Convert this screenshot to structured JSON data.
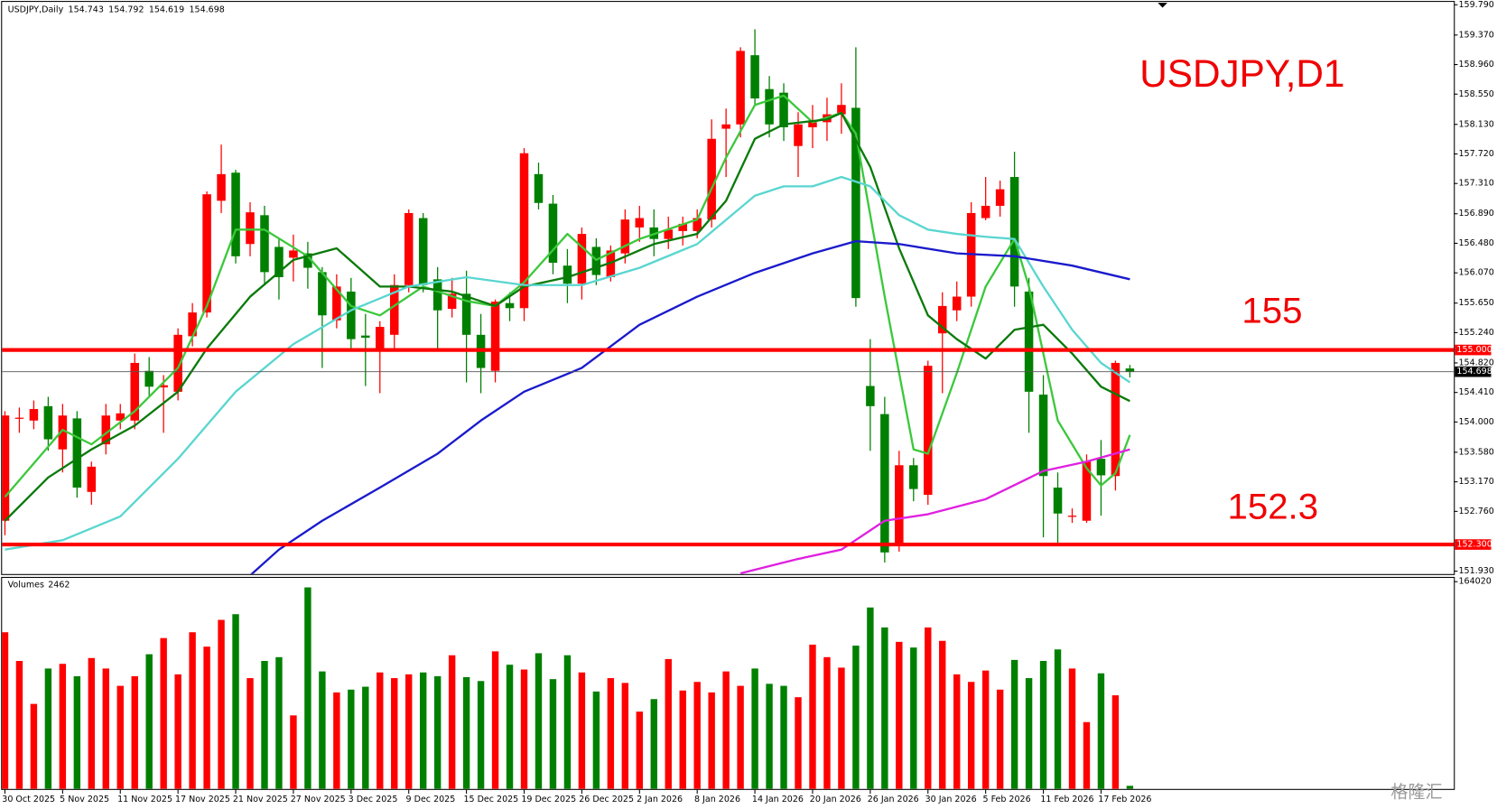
{
  "chart_data": [
    {
      "type": "candlestick",
      "title": "USDJPY,Daily",
      "up_color": "#ff0000",
      "down_color": "#008000",
      "grid": false,
      "categories": [
        "30 Oct 2025",
        null,
        null,
        null,
        "5 Nov 2025",
        null,
        null,
        null,
        "11 Nov 2025",
        null,
        null,
        null,
        "17 Nov 2025",
        null,
        null,
        null,
        "21 Nov 2025",
        null,
        null,
        null,
        "27 Nov 2025",
        null,
        null,
        null,
        "3 Dec 2025",
        null,
        null,
        null,
        "9 Dec 2025",
        null,
        null,
        null,
        "15 Dec 2025",
        null,
        null,
        null,
        "19 Dec 2025",
        null,
        null,
        null,
        "26 Dec 2025",
        null,
        null,
        null,
        "2 Jan 2026",
        null,
        null,
        null,
        "8 Jan 2026",
        null,
        null,
        null,
        "14 Jan 2026",
        null,
        null,
        null,
        "20 Jan 2026",
        null,
        null,
        null,
        "26 Jan 2026",
        null,
        null,
        null,
        "30 Jan 2026",
        null,
        null,
        null,
        "5 Feb 2026",
        null,
        null,
        null,
        "11 Feb 2026",
        null,
        null,
        null,
        "17 Feb 2026",
        null,
        null
      ],
      "open": [
        152.63,
        154.05,
        154.02,
        154.22,
        153.62,
        154.05,
        153.03,
        153.69,
        154.02,
        154.02,
        154.71,
        154.48,
        154.42,
        155.19,
        155.52,
        157.07,
        157.46,
        156.47,
        156.87,
        156.43,
        156.28,
        156.34,
        156.08,
        155.41,
        155.81,
        155.2,
        155.02,
        155.21,
        155.9,
        156.83,
        155.98,
        155.57,
        155.78,
        155.21,
        154.71,
        155.65,
        155.58,
        157.44,
        157.03,
        156.17,
        155.92,
        156.43,
        156.01,
        156.34,
        156.7,
        156.7,
        156.54,
        156.65,
        156.65,
        156.81,
        158.07,
        158.13,
        159.09,
        158.62,
        158.57,
        157.83,
        158.09,
        158.16,
        158.27,
        158.36,
        154.5,
        154.11,
        152.3,
        153.4,
        152.99,
        155.23,
        155.55,
        155.74,
        156.83,
        157.0,
        157.4,
        155.81,
        154.38,
        153.09,
        152.69,
        152.63,
        153.49,
        153.25,
        154.743
      ],
      "high": [
        154.15,
        154.2,
        154.3,
        154.35,
        154.25,
        154.15,
        153.45,
        154.25,
        154.25,
        154.95,
        154.9,
        154.65,
        155.3,
        155.65,
        157.2,
        157.85,
        157.5,
        157.05,
        157.0,
        156.55,
        156.6,
        156.5,
        156.15,
        156.05,
        156.0,
        155.5,
        155.4,
        156.05,
        156.95,
        156.9,
        156.15,
        156.0,
        156.1,
        155.5,
        155.7,
        155.8,
        157.8,
        157.6,
        157.15,
        156.4,
        156.7,
        156.55,
        156.45,
        156.95,
        157.0,
        156.95,
        156.85,
        156.85,
        156.95,
        158.2,
        158.35,
        159.2,
        159.45,
        158.8,
        158.7,
        158.3,
        158.4,
        158.5,
        158.7,
        159.2,
        155.15,
        154.35,
        153.6,
        153.5,
        154.85,
        155.8,
        155.95,
        157.05,
        157.4,
        157.35,
        157.75,
        156.0,
        154.65,
        153.3,
        152.8,
        153.55,
        153.75,
        154.85,
        154.792
      ],
      "low": [
        152.43,
        153.85,
        153.9,
        153.6,
        153.3,
        152.95,
        152.85,
        153.55,
        153.9,
        153.9,
        154.35,
        153.85,
        154.3,
        155.05,
        155.45,
        156.9,
        156.2,
        156.3,
        155.9,
        155.7,
        155.95,
        155.85,
        154.75,
        155.3,
        155.0,
        154.5,
        154.4,
        155.0,
        155.8,
        155.8,
        155.0,
        155.45,
        154.55,
        154.4,
        154.55,
        155.4,
        155.4,
        156.95,
        156.05,
        155.65,
        155.7,
        155.9,
        155.95,
        156.2,
        156.5,
        156.3,
        156.4,
        156.45,
        156.55,
        156.7,
        157.4,
        157.95,
        158.4,
        157.95,
        157.9,
        157.4,
        157.8,
        157.9,
        158.0,
        155.6,
        153.6,
        152.05,
        152.2,
        152.9,
        152.85,
        154.4,
        155.4,
        155.6,
        156.8,
        156.85,
        155.6,
        153.85,
        152.4,
        152.3,
        152.6,
        152.6,
        152.7,
        153.05,
        154.619
      ],
      "close": [
        154.09,
        154.06,
        154.18,
        153.76,
        154.09,
        153.09,
        153.38,
        154.09,
        154.12,
        154.82,
        154.49,
        154.51,
        155.21,
        155.52,
        157.16,
        157.44,
        156.3,
        156.91,
        156.08,
        156.01,
        156.38,
        156.14,
        155.48,
        155.88,
        155.15,
        155.17,
        155.32,
        155.9,
        156.9,
        155.9,
        155.55,
        155.78,
        155.21,
        154.75,
        155.67,
        155.58,
        157.73,
        157.04,
        156.21,
        155.92,
        156.61,
        156.04,
        156.38,
        156.81,
        156.83,
        156.54,
        156.67,
        156.75,
        156.83,
        157.93,
        158.13,
        159.15,
        158.49,
        158.13,
        158.09,
        158.13,
        158.16,
        158.27,
        158.4,
        155.72,
        154.22,
        152.19,
        153.4,
        153.07,
        154.78,
        155.61,
        155.74,
        156.9,
        157.0,
        157.23,
        155.88,
        154.42,
        153.25,
        152.73,
        152.7,
        153.45,
        153.26,
        154.82,
        154.698
      ],
      "lines": [
        {
          "color": "#3cc83c",
          "x": [
            0,
            4,
            6,
            9,
            12,
            14,
            16,
            18,
            21,
            24,
            26,
            29,
            32,
            34,
            36,
            39,
            41,
            44,
            48,
            50,
            52,
            54,
            56,
            58,
            59,
            61,
            63,
            64,
            66,
            68,
            70,
            71,
            73,
            75,
            76,
            77,
            78
          ],
          "values": [
            152.96,
            153.89,
            153.69,
            154.15,
            154.75,
            155.61,
            156.67,
            156.67,
            156.3,
            155.61,
            155.48,
            155.88,
            155.68,
            155.61,
            155.94,
            156.61,
            156.25,
            156.54,
            156.81,
            157.67,
            158.4,
            158.53,
            158.16,
            158.29,
            158.0,
            155.74,
            153.62,
            153.56,
            154.68,
            155.88,
            156.54,
            155.88,
            154.02,
            153.36,
            153.12,
            153.29,
            153.82
          ]
        },
        {
          "color": "#0a7a0a",
          "x": [
            0,
            3,
            6,
            9,
            12,
            14,
            17,
            20,
            23,
            26,
            28,
            31,
            34,
            36,
            39,
            42,
            45,
            48,
            50,
            52,
            54,
            57,
            58,
            60,
            62,
            64,
            66,
            68,
            70,
            72,
            74,
            76,
            78
          ],
          "values": [
            152.63,
            153.23,
            153.62,
            153.95,
            154.42,
            155.02,
            155.74,
            156.25,
            156.41,
            155.88,
            155.88,
            155.81,
            155.61,
            155.88,
            156.01,
            156.21,
            156.47,
            156.61,
            157.07,
            157.93,
            158.13,
            158.2,
            158.29,
            157.54,
            156.41,
            155.48,
            155.15,
            154.88,
            155.28,
            155.35,
            154.95,
            154.49,
            154.29
          ]
        },
        {
          "color": "#5ad6d0",
          "x": [
            0,
            4,
            8,
            12,
            16,
            20,
            24,
            28,
            32,
            36,
            40,
            44,
            48,
            52,
            54,
            56,
            58,
            60,
            62,
            64,
            66,
            68,
            70,
            72,
            74,
            76,
            78
          ],
          "values": [
            152.23,
            152.36,
            152.69,
            153.49,
            154.42,
            155.08,
            155.55,
            155.88,
            156.01,
            155.9,
            155.9,
            156.14,
            156.47,
            157.14,
            157.27,
            157.27,
            157.4,
            157.27,
            156.87,
            156.67,
            156.61,
            156.57,
            156.54,
            155.88,
            155.28,
            154.82,
            154.55
          ]
        },
        {
          "color": "#1a1acc",
          "x": [
            17,
            19,
            22,
            26,
            30,
            33,
            36,
            40,
            44,
            48,
            52,
            56,
            59,
            62,
            66,
            70,
            74,
            78
          ],
          "values": [
            151.87,
            152.23,
            152.63,
            153.09,
            153.56,
            154.02,
            154.42,
            154.75,
            155.35,
            155.74,
            156.07,
            156.34,
            156.51,
            156.47,
            156.34,
            156.3,
            156.17,
            155.98
          ]
        },
        {
          "color": "#e020e0",
          "x": [
            51,
            55,
            58,
            61,
            64,
            68,
            72,
            75,
            78
          ],
          "values": [
            151.9,
            152.1,
            152.23,
            152.63,
            152.72,
            152.93,
            153.32,
            153.45,
            153.62
          ]
        }
      ],
      "levels": [
        {
          "value": 155,
          "label": "155.000",
          "color": "#ff0000"
        },
        {
          "value": 152.3,
          "label": "152.300",
          "color": "#ff0000"
        }
      ],
      "annotations": [
        "USDJPY,D1",
        "155",
        "152.3"
      ],
      "ylim": [
        151.93,
        159.79
      ],
      "yticks": [
        {
          "value": 159.79,
          "label": "159.790"
        },
        {
          "value": 159.37,
          "label": "159.370"
        },
        {
          "value": 158.96,
          "label": "158.960"
        },
        {
          "value": 158.55,
          "label": "158.550"
        },
        {
          "value": 158.13,
          "label": "158.130"
        },
        {
          "value": 157.72,
          "label": "157.720"
        },
        {
          "value": 157.31,
          "label": "157.310"
        },
        {
          "value": 156.89,
          "label": "156.890"
        },
        {
          "value": 156.48,
          "label": "156.480"
        },
        {
          "value": 156.07,
          "label": "156.070"
        },
        {
          "value": 155.65,
          "label": "155.650"
        },
        {
          "value": 155.24,
          "label": "155.240"
        },
        {
          "value": 154.82,
          "label": "154.820"
        },
        {
          "value": 154.41,
          "label": "154.410"
        },
        {
          "value": 154,
          "label": "154.000"
        },
        {
          "value": 153.58,
          "label": "153.580"
        },
        {
          "value": 153.17,
          "label": "153.170"
        },
        {
          "value": 152.76,
          "label": "152.760"
        },
        {
          "value": 151.93,
          "label": "151.930"
        }
      ]
    },
    {
      "type": "bar",
      "title": "Volumes",
      "up_color": "#ff0000",
      "down_color": "#008000",
      "values": [
        124000,
        101300,
        67300,
        95300,
        99000,
        89200,
        103600,
        95300,
        81600,
        89200,
        106600,
        119400,
        90700,
        124000,
        112600,
        133800,
        138300,
        87700,
        101300,
        104300,
        58200,
        159500,
        93000,
        76400,
        78600,
        80900,
        92200,
        87700,
        90700,
        92200,
        89200,
        105800,
        88500,
        85400,
        108900,
        98300,
        94500,
        107400,
        86900,
        105800,
        92200,
        77100,
        87700,
        83900,
        61200,
        71100,
        102800,
        77900,
        84700,
        76400,
        93000,
        81600,
        95300,
        83200,
        81600,
        72600,
        114200,
        104300,
        96000,
        113400,
        143600,
        127800,
        116400,
        111900,
        127800,
        117200,
        90700,
        84700,
        93700,
        78600,
        102100,
        87700,
        101300,
        110400,
        95300,
        52900,
        91500,
        74100,
        2462
      ],
      "ylim": [
        0,
        164020
      ],
      "yticks": [
        164020
      ]
    }
  ],
  "watermark": "格隆汇"
}
